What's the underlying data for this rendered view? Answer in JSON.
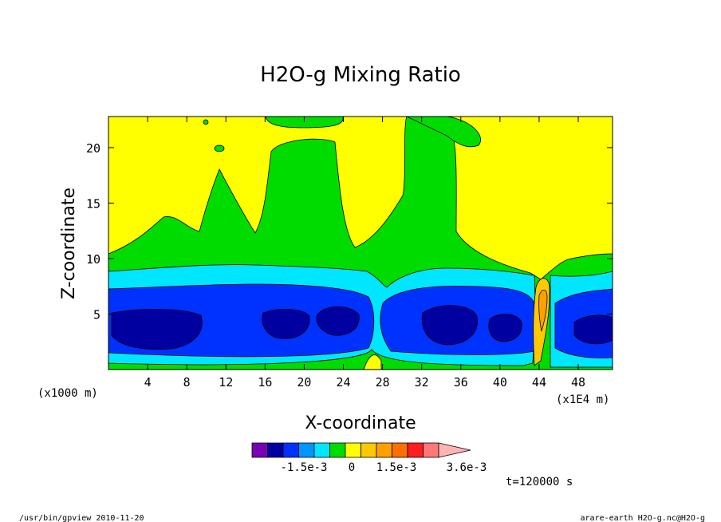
{
  "chart_data": {
    "type": "heatmap",
    "title": "H2O-g Mixing Ratio",
    "xlabel": "X-coordinate",
    "ylabel": "Z-coordinate",
    "x_unit_left": "(x1000 m)",
    "x_unit_right": "(x1E4 m)",
    "xlim": [
      0,
      51.5
    ],
    "ylim": [
      0,
      22.8
    ],
    "x_ticks": [
      4,
      8,
      12,
      16,
      20,
      24,
      28,
      32,
      36,
      40,
      44,
      48
    ],
    "y_ticks": [
      5,
      10,
      15,
      20
    ],
    "colorbar": {
      "colors": [
        "#7a00b4",
        "#0000a0",
        "#0032ff",
        "#0096ff",
        "#00e6ff",
        "#00dc00",
        "#ffff00",
        "#ffc800",
        "#ffa000",
        "#ff6e00",
        "#ff1e1e",
        "#ff7878",
        "#ffb4b4"
      ],
      "labels": [
        "-1.5e-3",
        "0",
        "1.5e-3",
        "3.6e-3"
      ]
    },
    "time_label": "t=120000 s"
  },
  "footer": {
    "left": "/usr/bin/gpview  2010-11-20",
    "right": "arare-earth_H2O-g.nc@H2O-g"
  }
}
